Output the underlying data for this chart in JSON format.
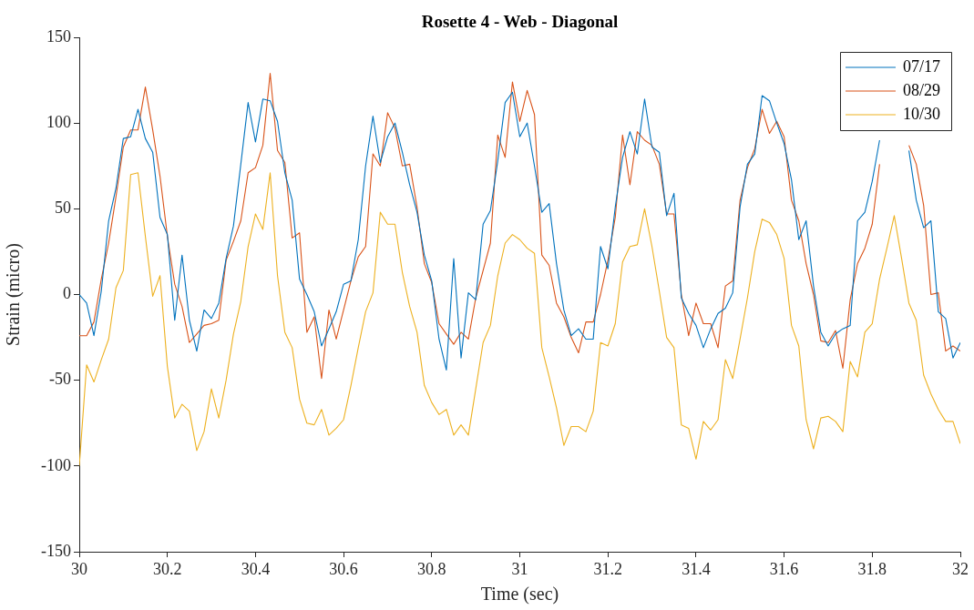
{
  "chart_data": {
    "type": "line",
    "title": "Rosette 4 - Web - Diagonal",
    "xlabel": "Time (sec)",
    "ylabel": "Strain (micro)",
    "x": [
      30,
      30.0167,
      30.0333,
      30.05,
      30.0667,
      30.0833,
      30.1,
      30.1167,
      30.1333,
      30.15,
      30.1667,
      30.1833,
      30.2,
      30.2167,
      30.2333,
      30.25,
      30.2667,
      30.2833,
      30.3,
      30.3167,
      30.3333,
      30.35,
      30.3667,
      30.3833,
      30.4,
      30.4167,
      30.4333,
      30.45,
      30.4667,
      30.4833,
      30.5,
      30.5167,
      30.5333,
      30.55,
      30.5667,
      30.5833,
      30.6,
      30.6167,
      30.6333,
      30.65,
      30.6667,
      30.6833,
      30.7,
      30.7167,
      30.7333,
      30.75,
      30.7667,
      30.7833,
      30.8,
      30.8167,
      30.8333,
      30.85,
      30.8667,
      30.8833,
      30.9,
      30.9167,
      30.9333,
      30.95,
      30.9667,
      30.9833,
      31,
      31.0167,
      31.0333,
      31.05,
      31.0667,
      31.0833,
      31.1,
      31.1167,
      31.1333,
      31.15,
      31.1667,
      31.1833,
      31.2,
      31.2167,
      31.2333,
      31.25,
      31.2667,
      31.2833,
      31.3,
      31.3167,
      31.3333,
      31.35,
      31.3667,
      31.3833,
      31.4,
      31.4167,
      31.4333,
      31.45,
      31.4667,
      31.4833,
      31.5,
      31.5167,
      31.5333,
      31.55,
      31.5667,
      31.5833,
      31.6,
      31.6167,
      31.6333,
      31.65,
      31.6667,
      31.6833,
      31.7,
      31.7167,
      31.7333,
      31.75,
      31.7667,
      31.7833,
      31.8,
      31.8167,
      31.8333,
      31.85,
      31.8667,
      31.8833,
      31.9,
      31.9167,
      31.9333,
      31.95,
      31.9667,
      31.9833,
      32
    ],
    "series": [
      {
        "name": "07/17",
        "color": "#0072bd",
        "values": [
          0,
          -5,
          -24,
          2,
          43,
          62,
          91,
          92,
          108,
          91,
          83,
          45,
          35,
          -15,
          23,
          -15,
          -33,
          -9,
          -14,
          -5,
          21,
          40,
          76,
          112,
          89,
          114,
          113,
          101,
          71,
          55,
          9,
          0,
          -10,
          -30,
          -20,
          -10,
          6,
          8,
          32,
          75,
          104,
          77,
          92,
          100,
          83,
          64,
          48,
          23,
          8,
          -26,
          -44,
          21,
          -37,
          1,
          -3,
          41,
          49,
          78,
          112,
          118,
          92,
          100,
          75,
          48,
          53,
          18,
          -9,
          -24,
          -20,
          -26,
          -26,
          28,
          15,
          51,
          80,
          95,
          82,
          114,
          86,
          83,
          46,
          59,
          -2,
          -11,
          -18,
          -31,
          -20,
          -11,
          -8,
          1,
          51,
          76,
          82,
          116,
          113,
          100,
          88,
          67,
          32,
          43,
          5,
          -22,
          -30,
          -23,
          -20,
          -18,
          43,
          48,
          66,
          90,
          null,
          null,
          null,
          84,
          55,
          39,
          43,
          -10,
          -14,
          -37,
          -28
        ]
      },
      {
        "name": "08/29",
        "color": "#d95319",
        "values": [
          -24,
          -24,
          -16,
          9,
          30,
          57,
          86,
          96,
          96,
          121,
          96,
          69,
          34,
          6,
          -7,
          -28,
          -23,
          -18,
          -17,
          -15,
          20,
          31,
          43,
          71,
          74,
          87,
          129,
          84,
          77,
          33,
          36,
          -22,
          -13,
          -49,
          -9,
          -26,
          -9,
          8,
          22,
          28,
          82,
          75,
          106,
          97,
          75,
          76,
          51,
          18,
          7,
          -17,
          -23,
          -29,
          -22,
          -26,
          -2,
          14,
          30,
          93,
          80,
          124,
          101,
          119,
          105,
          23,
          17,
          -5,
          -13,
          -25,
          -34,
          -16,
          -16,
          0,
          20,
          45,
          93,
          64,
          95,
          90,
          87,
          76,
          47,
          47,
          0,
          -24,
          -5,
          -17,
          -17,
          -31,
          5,
          8,
          55,
          74,
          85,
          108,
          94,
          101,
          92,
          55,
          43,
          18,
          0,
          -27,
          -28,
          -21,
          -43,
          -3,
          18,
          27,
          41,
          76,
          null,
          null,
          null,
          87,
          76,
          52,
          0,
          1,
          -33,
          -30,
          -33
        ]
      },
      {
        "name": "10/30",
        "color": "#edb120",
        "values": [
          -100,
          -41,
          -51,
          -38,
          -26,
          4,
          14,
          70,
          71,
          34,
          -1,
          11,
          -42,
          -72,
          -64,
          -68,
          -91,
          -80,
          -55,
          -72,
          -50,
          -23,
          -4,
          28,
          47,
          38,
          71,
          11,
          -22,
          -31,
          -61,
          -75,
          -76,
          -67,
          -82,
          -78,
          -73,
          -53,
          -31,
          -10,
          1,
          48,
          41,
          41,
          13,
          -7,
          -22,
          -53,
          -63,
          -70,
          -67,
          -82,
          -76,
          -82,
          -55,
          -28,
          -18,
          11,
          30,
          35,
          32,
          27,
          24,
          -31,
          -48,
          -66,
          -88,
          -77,
          -77,
          -80,
          -68,
          -28,
          -30,
          -17,
          19,
          28,
          29,
          50,
          28,
          2,
          -25,
          -31,
          -76,
          -78,
          -96,
          -74,
          -79,
          -73,
          -38,
          -49,
          -26,
          -2,
          25,
          44,
          42,
          35,
          21,
          -18,
          -30,
          -73,
          -90,
          -72,
          -71,
          -74,
          -80,
          -39,
          -48,
          -22,
          -17,
          9,
          27,
          46,
          21,
          -5,
          -15,
          -47,
          -58,
          -67,
          -74,
          -74,
          -87
        ]
      }
    ],
    "xlim": [
      30,
      32
    ],
    "xticks": [
      30,
      30.2,
      30.4,
      30.6,
      30.8,
      31,
      31.2,
      31.4,
      31.6,
      31.8,
      32
    ],
    "ylim": [
      -150,
      150
    ],
    "yticks": [
      -150,
      -100,
      -50,
      0,
      50,
      100,
      150
    ],
    "legend": "top right",
    "grid": false,
    "marker": "none",
    "line_style": "solid"
  }
}
